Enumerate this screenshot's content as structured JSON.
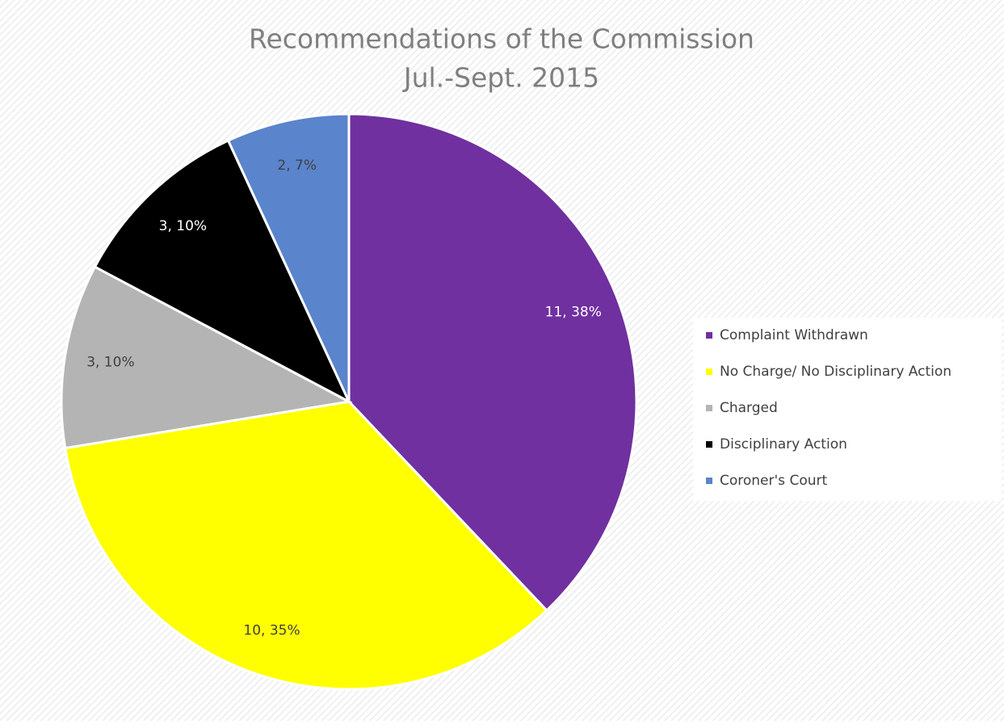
{
  "chart_data": {
    "type": "pie",
    "title": "Recommendations of the Commission",
    "subtitle": "Jul.-Sept. 2015",
    "categories": [
      "Complaint Withdrawn",
      "No Charge/ No Disciplinary Action",
      "Charged",
      "Disciplinary Action",
      "Coroner's Court"
    ],
    "values": [
      11,
      10,
      3,
      3,
      2
    ],
    "value_labels": [
      "11, 38%",
      "10, 35%",
      "3, 10%",
      "3, 10%",
      "2, 7%"
    ],
    "colors": [
      "#7030a0",
      "#ffff00",
      "#b4b4b4",
      "#000000",
      "#5a84cc"
    ],
    "legend": "right"
  }
}
